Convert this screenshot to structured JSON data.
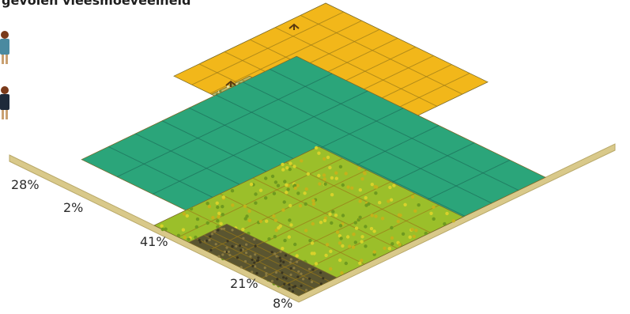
{
  "title": "gevolen vleesmoeveelheid",
  "icons": [
    "person-icon",
    "person-icon",
    "bird-icon",
    "bird-icon"
  ],
  "segments": [
    {
      "label": "28%",
      "share": 28,
      "color": "#f2b71a",
      "kind": "yellow"
    },
    {
      "label": "2%",
      "share": 2,
      "color": "#b8b866",
      "kind": "speckle"
    },
    {
      "label": "41%",
      "share": 41,
      "color": "#2ba57a",
      "kind": "green"
    },
    {
      "label": "21%",
      "share": 21,
      "color": "#9bbf2a",
      "kind": "crop"
    },
    {
      "label": "8%",
      "share": 8,
      "color": "#5a5530",
      "kind": "dark"
    }
  ]
}
